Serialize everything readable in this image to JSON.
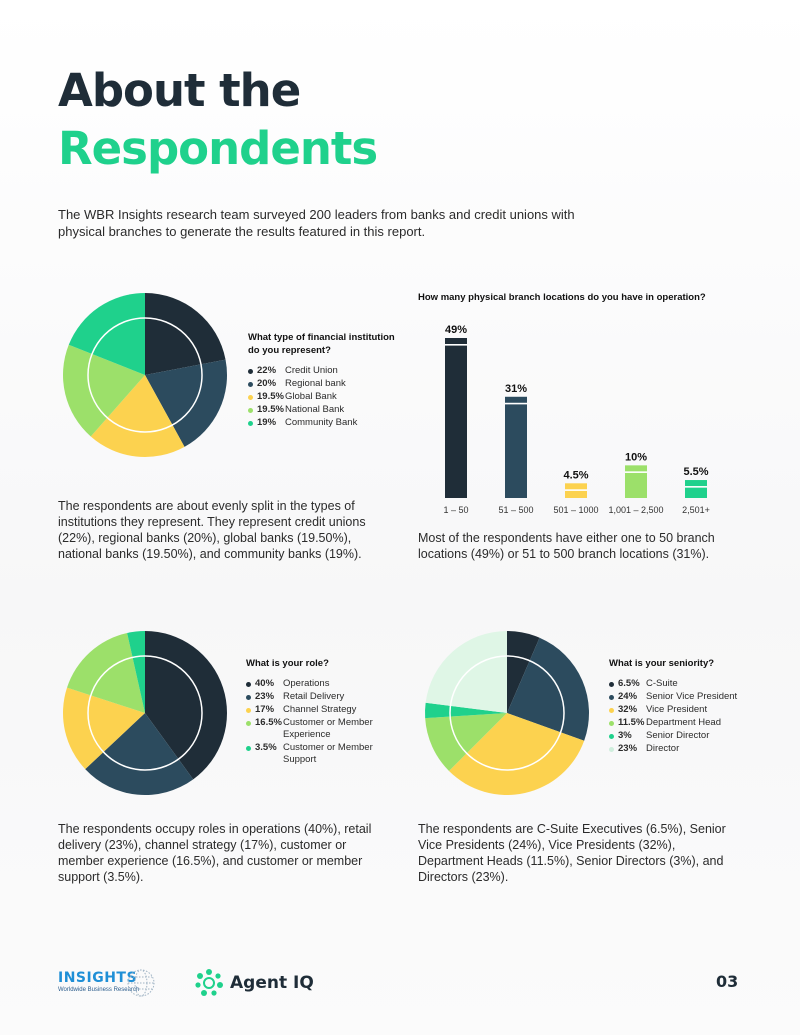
{
  "colors": {
    "dark_navy": "#1f2d38",
    "navy_blue": "#2c4b5e",
    "yellow": "#fcd24f",
    "light_green": "#9ce06a",
    "green": "#1fd18c",
    "pale_green": "#dff6e6"
  },
  "header": {
    "title_line1": "About the",
    "title_line2": "Respondents",
    "intro": "The WBR Insights research team surveyed 200 leaders from banks and credit unions with physical branches to generate the results featured in this report."
  },
  "chart_data": [
    {
      "type": "pie",
      "title": "What type of financial institution do you represent?",
      "slices": [
        {
          "label": "Credit Union",
          "pct_label": "22%",
          "value": 22,
          "color": "#1f2d38"
        },
        {
          "label": "Regional bank",
          "pct_label": "20%",
          "value": 20,
          "color": "#2c4b5e"
        },
        {
          "label": "Global Bank",
          "pct_label": "19.5%",
          "value": 19.5,
          "color": "#fcd24f"
        },
        {
          "label": "National Bank",
          "pct_label": "19.5%",
          "value": 19.5,
          "color": "#9ce06a"
        },
        {
          "label": "Community Bank",
          "pct_label": "19%",
          "value": 19,
          "color": "#1fd18c"
        }
      ]
    },
    {
      "type": "bar",
      "title": "How many physical branch locations do you have in operation?",
      "categories": [
        "1 – 50",
        "51 – 500",
        "501 – 1000",
        "1,001 – 2,500",
        "2,501+"
      ],
      "values": [
        49,
        31,
        4.5,
        10,
        5.5
      ],
      "value_labels": [
        "49%",
        "31%",
        "4.5%",
        "10%",
        "5.5%"
      ],
      "colors": [
        "#1f2d38",
        "#2c4b5e",
        "#fcd24f",
        "#9ce06a",
        "#1fd18c"
      ],
      "ylim": [
        0,
        49
      ]
    },
    {
      "type": "pie",
      "title": "What is your role?",
      "slices": [
        {
          "label": "Operations",
          "pct_label": "40%",
          "value": 40,
          "color": "#1f2d38"
        },
        {
          "label": "Retail Delivery",
          "pct_label": "23%",
          "value": 23,
          "color": "#2c4b5e"
        },
        {
          "label": "Channel Strategy",
          "pct_label": "17%",
          "value": 17,
          "color": "#fcd24f"
        },
        {
          "label": "Customer or Member Experience",
          "pct_label": "16.5%",
          "value": 16.5,
          "color": "#9ce06a"
        },
        {
          "label": "Customer or Member Support",
          "pct_label": "3.5%",
          "value": 3.5,
          "color": "#1fd18c"
        }
      ]
    },
    {
      "type": "pie",
      "title": "What is your seniority?",
      "slices": [
        {
          "label": "C-Suite",
          "pct_label": "6.5%",
          "value": 6.5,
          "color": "#1f2d38"
        },
        {
          "label": "Senior Vice President",
          "pct_label": "24%",
          "value": 24,
          "color": "#2c4b5e"
        },
        {
          "label": "Vice President",
          "pct_label": "32%",
          "value": 32,
          "color": "#fcd24f"
        },
        {
          "label": "Department Head",
          "pct_label": "11.5%",
          "value": 11.5,
          "color": "#9ce06a"
        },
        {
          "label": "Senior Director",
          "pct_label": "3%",
          "value": 3,
          "color": "#1fd18c"
        },
        {
          "label": "Director",
          "pct_label": "23%",
          "value": 23,
          "color": "#dff6e6"
        }
      ]
    }
  ],
  "paragraphs": {
    "institution": "The respondents are about evenly split in the types of institutions they represent. They represent credit unions (22%), regional banks (20%), global banks (19.50%), national banks (19.50%), and community banks (19%).",
    "branches": "Most of the respondents have either one to 50 branch locations (49%) or 51 to 500 branch locations (31%).",
    "role": "The respondents occupy roles in operations (40%), retail delivery (23%), channel strategy (17%), customer or member experience (16.5%), and customer or member support (3.5%).",
    "seniority": "The respondents are C-Suite Executives (6.5%), Senior Vice Presidents (24%), Vice Presidents (32%), Department Heads (11.5%), Senior Directors (3%), and Directors (23%)."
  },
  "footer": {
    "insights_word": "INSIGHTS",
    "insights_sub": "Worldwide Business Research",
    "agent_word": "Agent IQ",
    "page_number": "03"
  }
}
